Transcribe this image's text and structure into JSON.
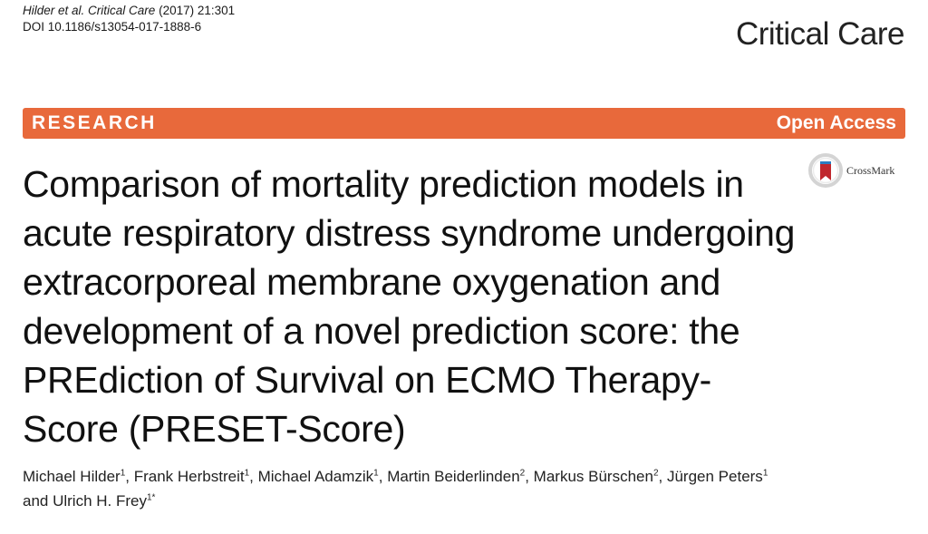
{
  "citation": {
    "authors": "Hilder et al.",
    "journal": "Critical Care",
    "year_volume": "(2017) 21:301",
    "doi": "DOI 10.1186/s13054-017-1888-6"
  },
  "journal_name": "Critical Care",
  "banner": {
    "label": "RESEARCH",
    "access": "Open Access"
  },
  "crossmark": {
    "label": "CrossMark",
    "icon": "crossmark-icon",
    "colors": {
      "ring": "#d4d4d4",
      "bookmark": "#c0272d"
    }
  },
  "title": "Comparison of mortality prediction models in acute respiratory distress syndrome undergoing extracorporeal membrane oxygenation and development of a novel prediction score: the PREdiction of Survival on ECMO Therapy-Score (PRESET-Score)",
  "authors": [
    {
      "name": "Michael Hilder",
      "aff": "1",
      "sep": ", "
    },
    {
      "name": "Frank Herbstreit",
      "aff": "1",
      "sep": ", "
    },
    {
      "name": "Michael Adamzik",
      "aff": "1",
      "sep": ", "
    },
    {
      "name": "Martin Beiderlinden",
      "aff": "2",
      "sep": ", "
    },
    {
      "name": "Markus Bürschen",
      "aff": "2",
      "sep": ", "
    },
    {
      "name": "Jürgen Peters",
      "aff": "1",
      "sep": " "
    },
    {
      "name": "and Ulrich H. Frey",
      "aff": "1*",
      "sep": ""
    }
  ],
  "colors": {
    "banner": "#e8693b",
    "banner_text": "#ffffff"
  }
}
